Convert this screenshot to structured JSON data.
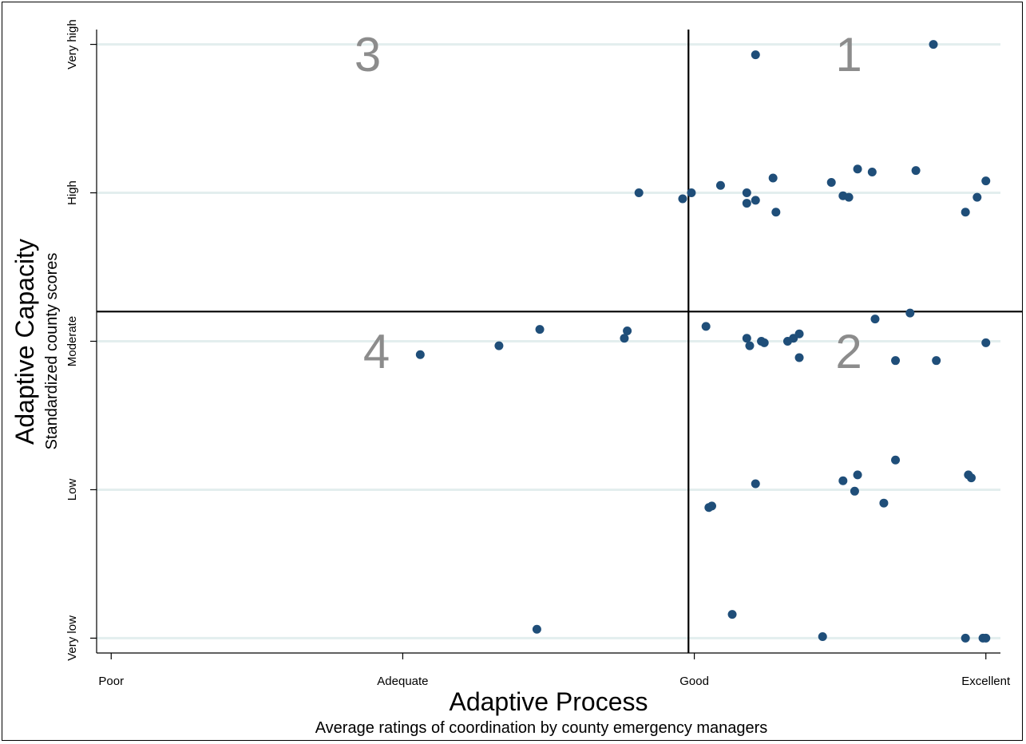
{
  "chart_data": {
    "type": "scatter",
    "xlabel": "Adaptive Process",
    "xlabel_sub": "Average ratings of coordination by county emergency managers",
    "ylabel": "Adaptive Capacity",
    "ylabel_sub": "Standardized county scores",
    "xlim": [
      -0.05,
      3.05
    ],
    "ylim": [
      -0.1,
      4.1
    ],
    "x_ticks": [
      {
        "value": 0,
        "label": "Poor"
      },
      {
        "value": 1,
        "label": "Adequate"
      },
      {
        "value": 2,
        "label": "Good"
      },
      {
        "value": 3,
        "label": "Excellent"
      }
    ],
    "y_ticks": [
      {
        "value": 0,
        "label": "Very low"
      },
      {
        "value": 1,
        "label": "Low"
      },
      {
        "value": 2,
        "label": "Moderate"
      },
      {
        "value": 3,
        "label": "High"
      },
      {
        "value": 4,
        "label": "Very high"
      }
    ],
    "grid": "horizontal",
    "reference_lines": {
      "x": 1.98,
      "y": 2.2
    },
    "quadrant_labels": [
      {
        "label": "1",
        "x": 2.53,
        "y": 3.82
      },
      {
        "label": "2",
        "x": 2.53,
        "y": 1.82
      },
      {
        "label": "3",
        "x": 0.88,
        "y": 3.82
      },
      {
        "label": "4",
        "x": 0.91,
        "y": 1.82
      }
    ],
    "marker_color": "#1f4e79",
    "points": [
      [
        2.21,
        3.93
      ],
      [
        2.82,
        4.0
      ],
      [
        1.81,
        3.0
      ],
      [
        1.96,
        2.96
      ],
      [
        1.99,
        3.0
      ],
      [
        2.09,
        3.05
      ],
      [
        2.18,
        3.0
      ],
      [
        2.18,
        2.93
      ],
      [
        2.21,
        2.95
      ],
      [
        2.27,
        3.1
      ],
      [
        2.28,
        2.87
      ],
      [
        2.47,
        3.07
      ],
      [
        2.51,
        2.98
      ],
      [
        2.53,
        2.97
      ],
      [
        2.56,
        3.16
      ],
      [
        2.61,
        3.14
      ],
      [
        2.76,
        3.15
      ],
      [
        2.93,
        2.87
      ],
      [
        2.97,
        2.97
      ],
      [
        3.0,
        3.08
      ],
      [
        1.06,
        1.91
      ],
      [
        1.33,
        1.97
      ],
      [
        1.47,
        2.08
      ],
      [
        1.76,
        2.02
      ],
      [
        1.77,
        2.07
      ],
      [
        2.04,
        2.1
      ],
      [
        2.18,
        2.02
      ],
      [
        2.19,
        1.97
      ],
      [
        2.23,
        2.0
      ],
      [
        2.24,
        1.99
      ],
      [
        2.32,
        2.0
      ],
      [
        2.34,
        2.02
      ],
      [
        2.36,
        2.05
      ],
      [
        2.36,
        1.89
      ],
      [
        2.62,
        2.15
      ],
      [
        2.69,
        1.87
      ],
      [
        2.74,
        2.19
      ],
      [
        2.83,
        1.87
      ],
      [
        3.0,
        1.99
      ],
      [
        2.05,
        0.88
      ],
      [
        2.06,
        0.89
      ],
      [
        2.21,
        1.04
      ],
      [
        2.51,
        1.06
      ],
      [
        2.55,
        0.99
      ],
      [
        2.56,
        1.1
      ],
      [
        2.65,
        0.91
      ],
      [
        2.69,
        1.2
      ],
      [
        2.94,
        1.1
      ],
      [
        2.95,
        1.08
      ],
      [
        1.46,
        0.06
      ],
      [
        2.13,
        0.16
      ],
      [
        2.44,
        0.01
      ],
      [
        2.93,
        0.0
      ],
      [
        2.99,
        0.0
      ],
      [
        3.0,
        0.0
      ]
    ]
  }
}
